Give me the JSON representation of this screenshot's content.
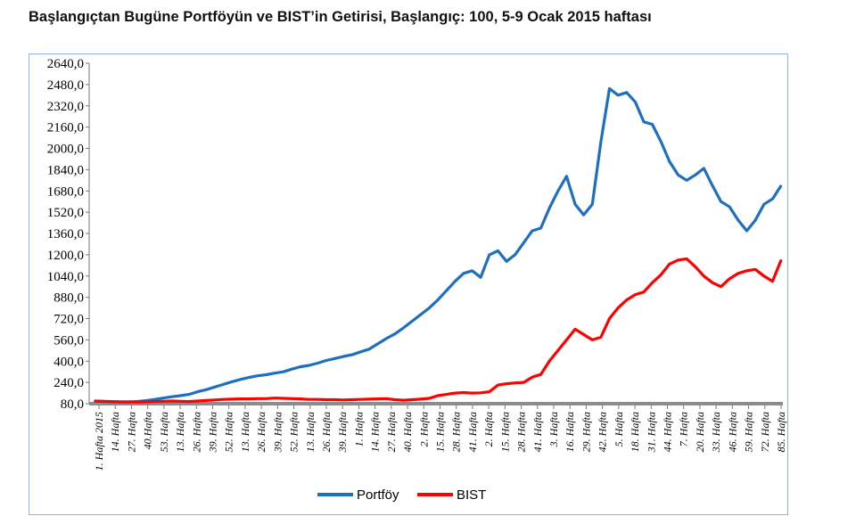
{
  "chart_data": {
    "type": "line",
    "title": "Başlangıçtan Bugüne Portföyün ve BIST’in Getirisi, Başlangıç: 100, 5-9 Ocak 2015 haftası",
    "ylim": [
      80,
      2640
    ],
    "y_ticks": [
      "2640,0",
      "2480,0",
      "2320,0",
      "2160,0",
      "2000,0",
      "1840,0",
      "1680,0",
      "1520,0",
      "1360,0",
      "1200,0",
      "1040,0",
      "880,0",
      "720,0",
      "560,0",
      "400,0",
      "240,0",
      "80,0"
    ],
    "x_ticks": [
      "1. Hafta 2015",
      "14. Hafta",
      "27. Hafta",
      "40.Hafta",
      "53. Hafta",
      "13. Hafta",
      "26. Hafta",
      "39. Hafta",
      "52. Hafta",
      "13. Hafta",
      "26. Hafta",
      "39. Hafta",
      "52. Hafta",
      "13. Hafta",
      "26. Hafta",
      "39. Hafta",
      "1. Hafta",
      "14. Hafta",
      "27. Hafta",
      "40. Hafta",
      "2. Hafta",
      "15. Hafta",
      "28. Hafta",
      "41. Hafta",
      "2. Hafta",
      "15. Hafta",
      "28. Hafta",
      "41. Hafta",
      "3. Hafta",
      "16. Hafta",
      "29. Hafta",
      "42. Hafta",
      "5. Hafta",
      "18. Hafta",
      "31. Hafta",
      "44. Hafta",
      "7. Hafta",
      "20. Hafta",
      "33. Hafta",
      "46. Hafta",
      "59. Hafta",
      "72. Hafta",
      "85. Hafta"
    ],
    "legend_position": "bottom",
    "series": [
      {
        "name": "Portföy",
        "color": "#1f6fbf",
        "values": [
          100,
          97,
          94,
          92,
          93,
          97,
          103,
          112,
          122,
          132,
          140,
          150,
          170,
          185,
          205,
          225,
          245,
          262,
          278,
          290,
          298,
          310,
          320,
          340,
          358,
          368,
          385,
          405,
          420,
          435,
          448,
          470,
          490,
          530,
          570,
          605,
          650,
          700,
          750,
          800,
          860,
          930,
          1000,
          1060,
          1080,
          1030,
          1200,
          1230,
          1150,
          1200,
          1290,
          1380,
          1400,
          1550,
          1680,
          1790,
          1580,
          1500,
          1580,
          2050,
          2450,
          2400,
          2420,
          2350,
          2200,
          2180,
          2050,
          1900,
          1800,
          1760,
          1800,
          1850,
          1720,
          1600,
          1560,
          1460,
          1380,
          1460,
          1580,
          1620,
          1720
        ]
      },
      {
        "name": "BIST",
        "color": "#ff0000",
        "values": [
          100,
          98,
          96,
          94,
          94,
          92,
          94,
          96,
          98,
          100,
          98,
          96,
          100,
          104,
          108,
          112,
          114,
          116,
          116,
          118,
          118,
          122,
          120,
          118,
          116,
          112,
          112,
          110,
          110,
          108,
          110,
          112,
          114,
          116,
          118,
          110,
          106,
          110,
          114,
          120,
          140,
          150,
          160,
          164,
          160,
          162,
          170,
          220,
          230,
          236,
          240,
          280,
          300,
          400,
          480,
          560,
          640,
          600,
          560,
          580,
          720,
          800,
          860,
          900,
          920,
          990,
          1050,
          1130,
          1160,
          1170,
          1110,
          1040,
          990,
          960,
          1020,
          1060,
          1080,
          1090,
          1040,
          1000,
          1160
        ]
      }
    ]
  }
}
